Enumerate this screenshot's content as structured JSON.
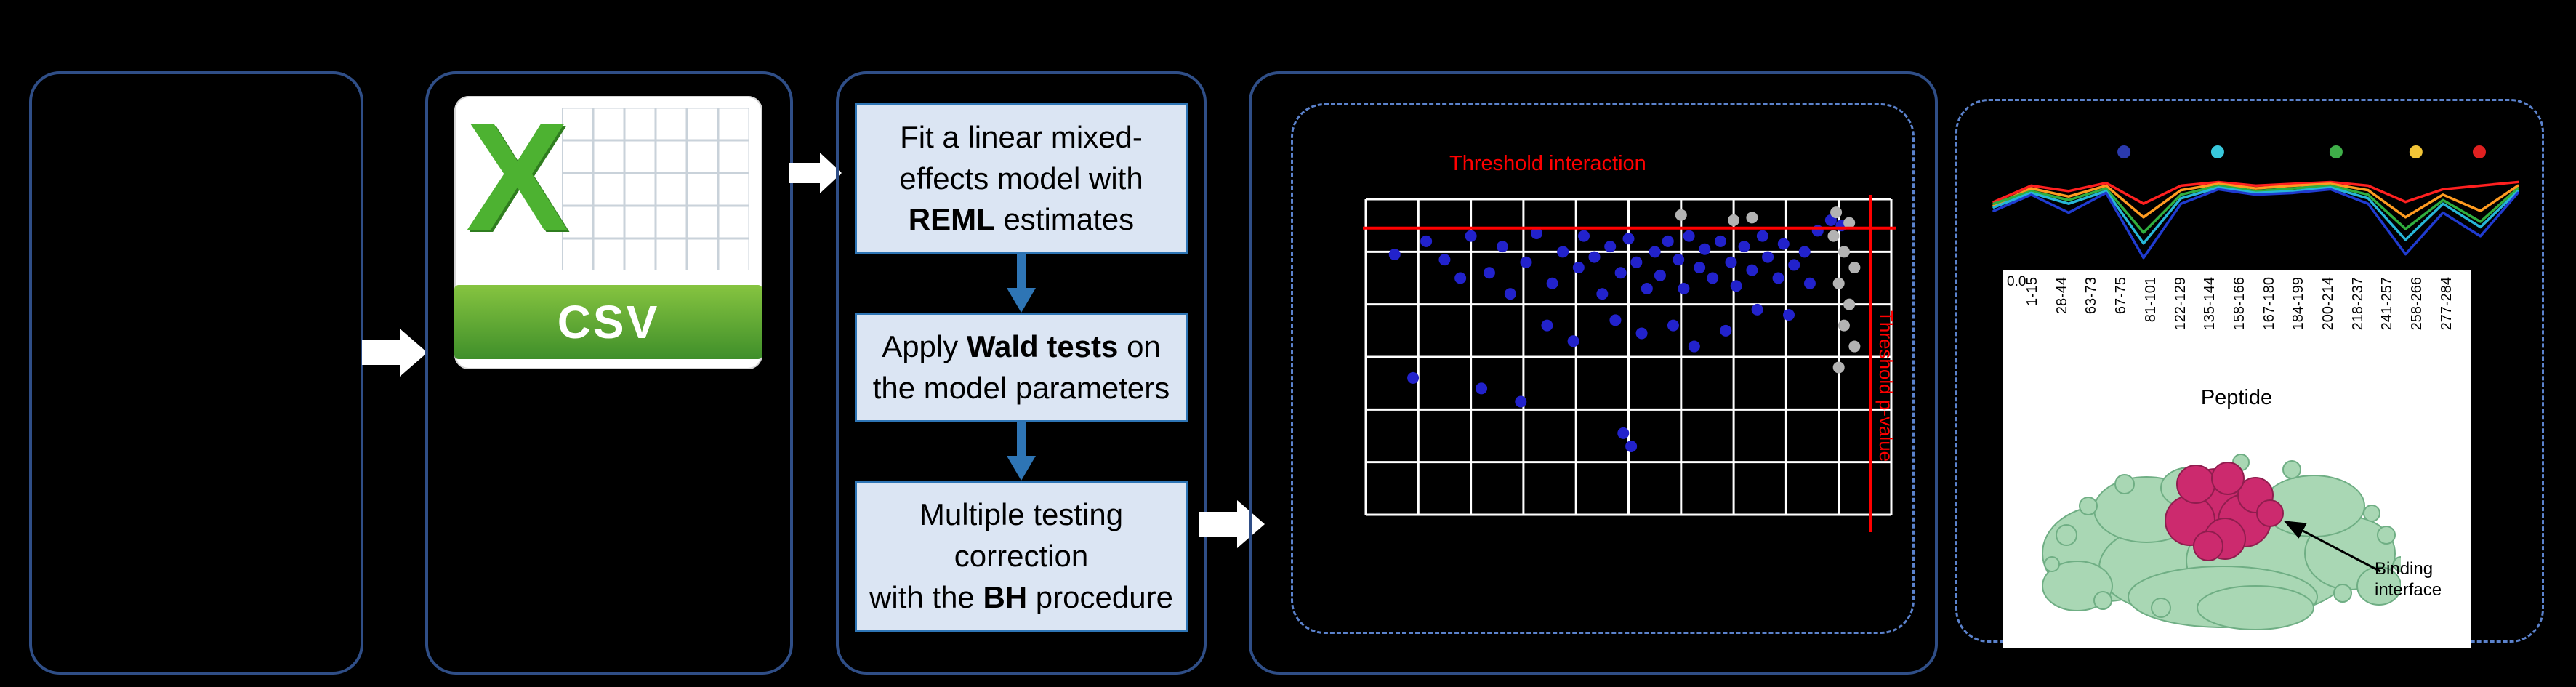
{
  "figure": {
    "background": "#000000"
  },
  "colors": {
    "panel_border": "#2f4e87",
    "dashed_border": "#5b82cc",
    "box_fill": "#dbe5f3",
    "box_border": "#2e75b5",
    "down_arrow": "#2e75b5",
    "flow_arrow": "#ffffff",
    "threshold_red": "#ff0000",
    "grid_white": "#ffffff",
    "csv_green_light": "#86c440",
    "csv_green_dark": "#3f8f2a",
    "csv_x_green": "#4db231",
    "csv_grid_line": "#c9d2da",
    "protein_green": "#a9d7b4",
    "protein_green_edge": "#6fae84",
    "protein_magenta": "#cc2a6e",
    "protein_magenta_edge": "#8f1d4e",
    "annotation_black": "#000000"
  },
  "csv_icon": {
    "letter": "X",
    "label": "CSV"
  },
  "workflow": {
    "steps": [
      {
        "segments": [
          {
            "t": "Fit a linear mixed-\neffects model with\n",
            "b": false
          },
          {
            "t": "REML",
            "b": true
          },
          {
            "t": " estimates",
            "b": false
          }
        ]
      },
      {
        "segments": [
          {
            "t": "Apply ",
            "b": false
          },
          {
            "t": "Wald tests",
            "b": true
          },
          {
            "t": " on\nthe model parameters",
            "b": false
          }
        ]
      },
      {
        "segments": [
          {
            "t": "Multiple testing\ncorrection\nwith the ",
            "b": false
          },
          {
            "t": "BH",
            "b": true
          },
          {
            "t": " procedure",
            "b": false
          }
        ]
      }
    ]
  },
  "epitope": {
    "binding_label": "Binding interface"
  },
  "chart_data": [
    {
      "type": "scatter",
      "title": "Threshold interaction",
      "right_label": "Threshold p-value",
      "x_range": [
        0,
        10
      ],
      "y_range": [
        0,
        6
      ],
      "grid_step": 1,
      "grid_on": true,
      "threshold_interaction_y": 5.45,
      "threshold_pvalue_x": 9.6,
      "series": [
        {
          "name": "tested-interactions",
          "color": "#2222cc",
          "points": [
            [
              0.55,
              4.95
            ],
            [
              0.9,
              2.6
            ],
            [
              1.15,
              5.2
            ],
            [
              1.5,
              4.85
            ],
            [
              1.8,
              4.5
            ],
            [
              2.0,
              5.3
            ],
            [
              2.2,
              2.4
            ],
            [
              2.35,
              4.6
            ],
            [
              2.6,
              5.1
            ],
            [
              2.75,
              4.2
            ],
            [
              2.95,
              2.15
            ],
            [
              3.05,
              4.8
            ],
            [
              3.25,
              5.35
            ],
            [
              3.45,
              3.6
            ],
            [
              3.55,
              4.4
            ],
            [
              3.75,
              5.0
            ],
            [
              3.95,
              3.3
            ],
            [
              4.05,
              4.7
            ],
            [
              4.15,
              5.3
            ],
            [
              4.35,
              4.9
            ],
            [
              4.5,
              4.2
            ],
            [
              4.65,
              5.1
            ],
            [
              4.75,
              3.7
            ],
            [
              4.85,
              4.6
            ],
            [
              4.9,
              1.55
            ],
            [
              5.0,
              5.25
            ],
            [
              5.05,
              1.3
            ],
            [
              5.15,
              4.8
            ],
            [
              5.25,
              3.45
            ],
            [
              5.35,
              4.3
            ],
            [
              5.5,
              5.0
            ],
            [
              5.6,
              4.55
            ],
            [
              5.75,
              5.2
            ],
            [
              5.85,
              3.6
            ],
            [
              5.95,
              4.85
            ],
            [
              6.05,
              4.3
            ],
            [
              6.15,
              5.3
            ],
            [
              6.25,
              3.2
            ],
            [
              6.35,
              4.7
            ],
            [
              6.45,
              5.05
            ],
            [
              6.6,
              4.5
            ],
            [
              6.75,
              5.2
            ],
            [
              6.85,
              3.5
            ],
            [
              6.95,
              4.8
            ],
            [
              7.05,
              4.35
            ],
            [
              7.2,
              5.1
            ],
            [
              7.35,
              4.65
            ],
            [
              7.45,
              3.9
            ],
            [
              7.55,
              5.3
            ],
            [
              7.65,
              4.9
            ],
            [
              7.85,
              4.5
            ],
            [
              7.95,
              5.15
            ],
            [
              8.05,
              3.8
            ],
            [
              8.15,
              4.75
            ],
            [
              8.35,
              5.0
            ],
            [
              8.45,
              4.4
            ],
            [
              8.6,
              5.4
            ],
            [
              8.85,
              5.6
            ],
            [
              9.05,
              5.5
            ]
          ]
        },
        {
          "name": "filtered-points",
          "color": "#b3b3b3",
          "points": [
            [
              6.0,
              5.7
            ],
            [
              7.0,
              5.6
            ],
            [
              7.35,
              5.65
            ],
            [
              8.95,
              5.75
            ],
            [
              9.2,
              5.55
            ],
            [
              8.9,
              5.3
            ],
            [
              9.1,
              5.0
            ],
            [
              9.3,
              4.7
            ],
            [
              9.0,
              4.4
            ],
            [
              9.2,
              4.0
            ],
            [
              9.1,
              3.6
            ],
            [
              9.3,
              3.2
            ],
            [
              9.0,
              2.8
            ]
          ]
        }
      ]
    },
    {
      "type": "line",
      "xlabel": "Peptide",
      "y_tick": "0.0",
      "ylim": [
        0,
        1
      ],
      "x_categories": [
        "1-15",
        "28-44",
        "63-73",
        "67-75",
        "81-101",
        "122-129",
        "135-144",
        "158-166",
        "167-180",
        "184-199",
        "200-214",
        "218-237",
        "241-257",
        "258-266",
        "277-284"
      ],
      "series": [
        {
          "name": "profile-red",
          "color": "#ff2020",
          "values": [
            0.72,
            0.9,
            0.84,
            0.93,
            0.7,
            0.9,
            0.94,
            0.9,
            0.92,
            0.94,
            0.9,
            0.72,
            0.86,
            0.9,
            0.94
          ]
        },
        {
          "name": "profile-orange",
          "color": "#ff9b20",
          "values": [
            0.68,
            0.87,
            0.78,
            0.9,
            0.55,
            0.85,
            0.92,
            0.87,
            0.9,
            0.92,
            0.85,
            0.55,
            0.8,
            0.62,
            0.9
          ]
        },
        {
          "name": "profile-green",
          "color": "#2fae3e",
          "values": [
            0.7,
            0.84,
            0.74,
            0.87,
            0.38,
            0.8,
            0.9,
            0.84,
            0.87,
            0.9,
            0.8,
            0.42,
            0.74,
            0.5,
            0.87
          ]
        },
        {
          "name": "profile-cyan",
          "color": "#27b6d8",
          "values": [
            0.66,
            0.82,
            0.7,
            0.84,
            0.26,
            0.76,
            0.88,
            0.82,
            0.84,
            0.88,
            0.76,
            0.3,
            0.7,
            0.44,
            0.84
          ]
        },
        {
          "name": "profile-blue",
          "color": "#1f3bd0",
          "values": [
            0.62,
            0.8,
            0.6,
            0.82,
            0.1,
            0.7,
            0.86,
            0.8,
            0.82,
            0.86,
            0.7,
            0.14,
            0.6,
            0.34,
            0.82
          ]
        }
      ],
      "markers": [
        {
          "color": "#2b3aae",
          "x_frac": 0.26
        },
        {
          "color": "#38c8dc",
          "x_frac": 0.43
        },
        {
          "color": "#3faf49",
          "x_frac": 0.645
        },
        {
          "color": "#f2c537",
          "x_frac": 0.79
        },
        {
          "color": "#e02020",
          "x_frac": 0.905
        }
      ]
    }
  ]
}
